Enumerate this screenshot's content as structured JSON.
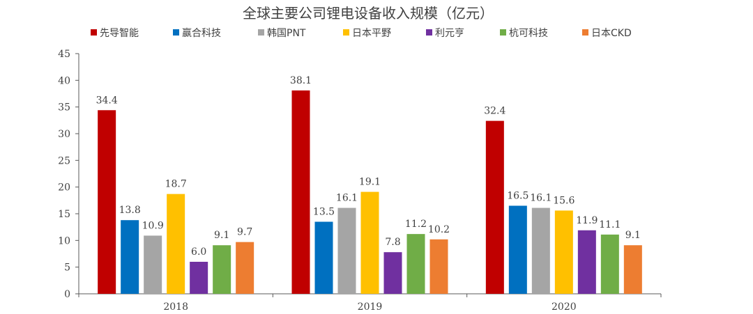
{
  "chart_data": {
    "type": "bar",
    "title": "全球主要公司锂电设备收入规模（亿元）",
    "xlabel": "",
    "ylabel": "",
    "ylim": [
      0,
      45
    ],
    "yticks": [
      0,
      5,
      10,
      15,
      20,
      25,
      30,
      35,
      40,
      45
    ],
    "categories": [
      "2018",
      "2019",
      "2020"
    ],
    "series": [
      {
        "name": "先导智能",
        "color": "#C00000",
        "values": [
          34.4,
          38.1,
          32.4
        ]
      },
      {
        "name": "赢合科技",
        "color": "#0070C0",
        "values": [
          13.8,
          13.5,
          16.5
        ]
      },
      {
        "name": "韩国PNT",
        "color": "#A5A5A5",
        "values": [
          10.9,
          16.1,
          16.1
        ]
      },
      {
        "name": "日本平野",
        "color": "#FFC000",
        "values": [
          18.7,
          19.1,
          15.6
        ]
      },
      {
        "name": "利元亨",
        "color": "#7030A0",
        "values": [
          6.0,
          7.8,
          11.9
        ]
      },
      {
        "name": "杭可科技",
        "color": "#70AD47",
        "values": [
          9.1,
          11.2,
          11.1
        ]
      },
      {
        "name": "日本CKD",
        "color": "#ED7D31",
        "values": [
          9.7,
          10.2,
          9.1
        ]
      }
    ],
    "legend_position": "top",
    "grid": false
  }
}
